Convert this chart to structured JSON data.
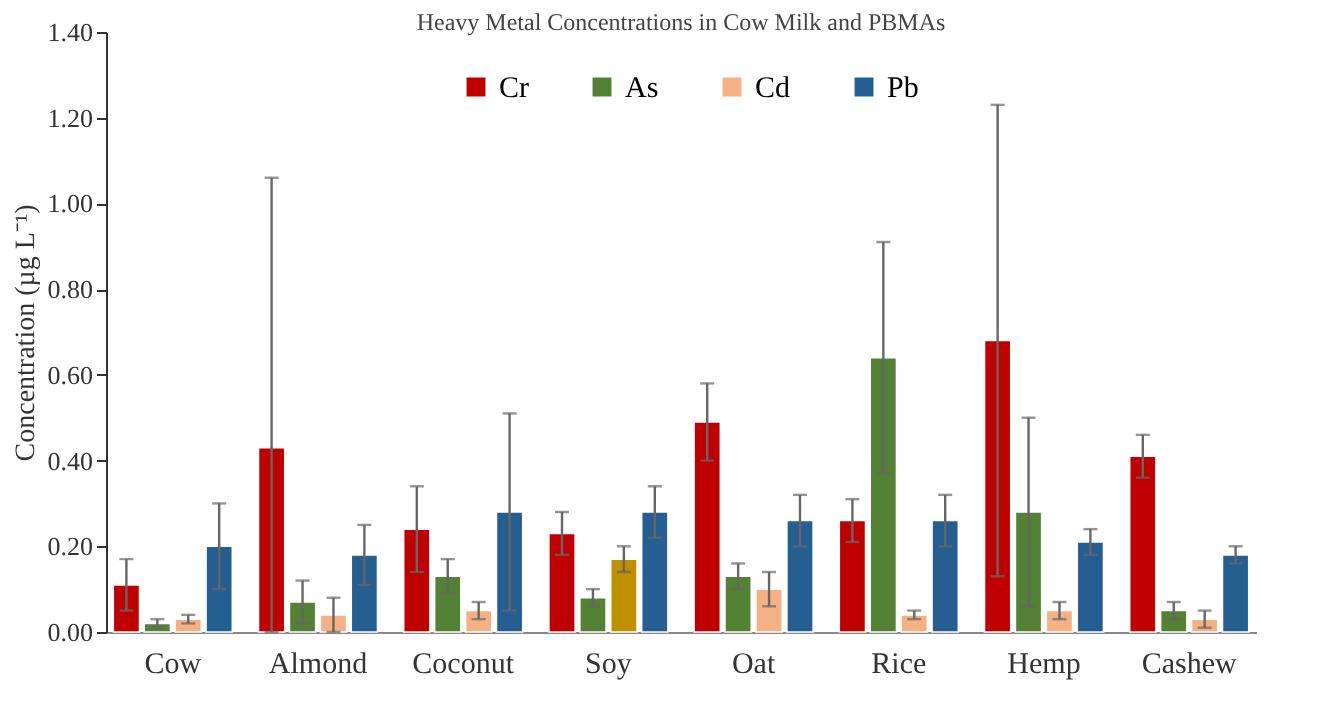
{
  "chart_data": {
    "type": "bar",
    "title": "Heavy Metal Concentrations in Cow Milk and PBMAs",
    "ylabel": "Concentration (µg L⁻¹)",
    "categories": [
      "Cow",
      "Almond",
      "Coconut",
      "Soy",
      "Oat",
      "Rice",
      "Hemp",
      "Cashew"
    ],
    "series": [
      {
        "name": "Cr",
        "color": "#c00000",
        "values": [
          0.11,
          0.43,
          0.24,
          0.23,
          0.49,
          0.26,
          0.68,
          0.41
        ],
        "errors": [
          0.06,
          [
            0,
            1.06
          ],
          0.1,
          0.05,
          0.09,
          0.05,
          0.55,
          0.05
        ]
      },
      {
        "name": "As",
        "color": "#548235",
        "values": [
          0.02,
          0.07,
          0.13,
          0.08,
          0.13,
          0.64,
          0.28,
          0.05
        ],
        "errors": [
          0.01,
          0.05,
          0.04,
          0.02,
          0.03,
          0.27,
          0.22,
          0.02
        ]
      },
      {
        "name": "Cd",
        "color": "#f4b183",
        "colors": [
          "#f4b183",
          "#f4b183",
          "#f4b183",
          "#bf9000",
          "#f4b183",
          "#f4b183",
          "#f4b183",
          "#f4b183"
        ],
        "values": [
          0.03,
          0.04,
          0.05,
          0.17,
          0.1,
          0.04,
          0.05,
          0.03
        ],
        "errors": [
          0.01,
          0.04,
          0.02,
          0.03,
          0.04,
          0.01,
          0.02,
          0.02
        ]
      },
      {
        "name": "Pb",
        "color": "#255e91",
        "values": [
          0.2,
          0.18,
          0.28,
          0.28,
          0.26,
          0.26,
          0.21,
          0.18
        ],
        "errors": [
          0.1,
          0.07,
          0.23,
          0.06,
          0.06,
          0.06,
          0.03,
          0.02
        ]
      }
    ],
    "ylim": [
      0,
      1.4
    ],
    "yticks": [
      {
        "value": 0,
        "label": "0.00"
      },
      {
        "value": 0.2,
        "label": "0.20"
      },
      {
        "value": 0.4,
        "label": "0.40"
      },
      {
        "value": 0.6,
        "label": "0.60"
      },
      {
        "value": 0.8,
        "label": "0.80"
      },
      {
        "value": 1.0,
        "label": "1.00"
      },
      {
        "value": 1.2,
        "label": "1.20"
      },
      {
        "value": 1.4,
        "label": "1.40"
      }
    ],
    "grid": false,
    "legend": "top"
  }
}
